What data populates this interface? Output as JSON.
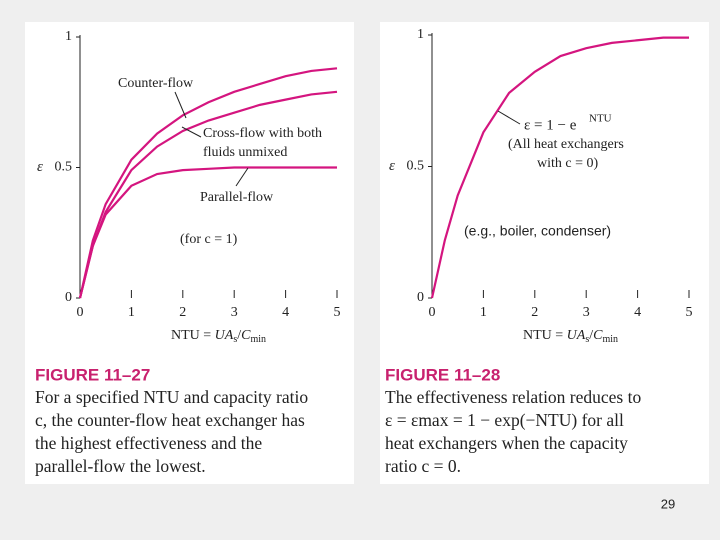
{
  "chart_data": [
    {
      "type": "line",
      "x": [
        0,
        0.25,
        0.5,
        1,
        1.5,
        2,
        2.5,
        3,
        3.5,
        4,
        4.5,
        5
      ],
      "series": [
        {
          "name": "Counter-flow",
          "color": "#d4157f",
          "values": [
            0,
            0.22,
            0.36,
            0.53,
            0.63,
            0.7,
            0.75,
            0.79,
            0.82,
            0.85,
            0.87,
            0.88
          ]
        },
        {
          "name": "Cross-flow with both fluids unmixed",
          "color": "#d4157f",
          "values": [
            0,
            0.2,
            0.33,
            0.49,
            0.58,
            0.64,
            0.68,
            0.71,
            0.74,
            0.76,
            0.78,
            0.79
          ]
        },
        {
          "name": "Parallel-flow",
          "color": "#d4157f",
          "values": [
            0,
            0.2,
            0.32,
            0.43,
            0.475,
            0.49,
            0.495,
            0.5,
            0.5,
            0.5,
            0.5,
            0.5
          ]
        }
      ],
      "xlim": [
        0,
        5
      ],
      "ylim": [
        0,
        1
      ],
      "xticks": [
        0,
        1,
        2,
        3,
        4,
        5
      ],
      "yticks": [
        0,
        0.5,
        1
      ],
      "y_label": "ε",
      "x_label_parts": [
        "NTU = ",
        "UA",
        "s",
        "/",
        "C",
        "min"
      ],
      "annotations": [
        "(for c = 1)"
      ]
    },
    {
      "type": "line",
      "x": [
        0,
        0.25,
        0.5,
        1,
        1.5,
        2,
        2.5,
        3,
        3.5,
        4,
        4.5,
        5
      ],
      "series": [
        {
          "color": "#d4157f",
          "values": [
            0,
            0.22,
            0.39,
            0.63,
            0.78,
            0.86,
            0.92,
            0.95,
            0.97,
            0.98,
            0.99,
            0.99
          ]
        }
      ],
      "xlim": [
        0,
        5
      ],
      "ylim": [
        0,
        1
      ],
      "xticks": [
        0,
        1,
        2,
        3,
        4,
        5
      ],
      "yticks": [
        0,
        0.5,
        1
      ],
      "y_label": "ε",
      "x_label_parts": [
        "NTU = ",
        "UA",
        "s",
        "/",
        "C",
        "min"
      ],
      "annotations": [
        "ε = 1 − e",
        "NTU",
        "(All heat exchangers",
        "with c = 0)",
        "(e.g., boiler, condenser)"
      ]
    }
  ],
  "captions": [
    {
      "figure": "FIGURE 11–27",
      "lines": [
        "For a specified NTU and capacity ratio",
        "c, the counter-flow heat exchanger has",
        "the highest effectiveness and the",
        "parallel-flow the lowest."
      ]
    },
    {
      "figure": "FIGURE 11–28",
      "lines": [
        "The effectiveness relation reduces to",
        "ε = εmax = 1 − exp(−NTU) for all",
        "heat exchangers when the capacity",
        "ratio c = 0."
      ]
    }
  ],
  "page_number": "29"
}
